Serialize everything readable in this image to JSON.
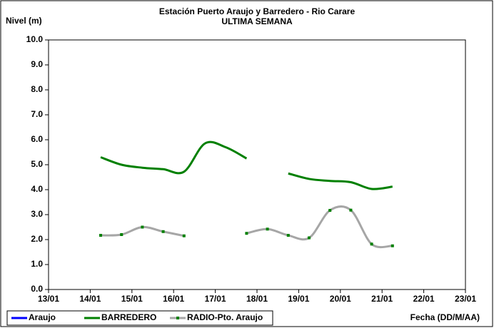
{
  "chart_data": {
    "type": "line",
    "title": "Estación Puerto Araujo y Barredero - Rio Carare",
    "subtitle": "ULTIMA SEMANA",
    "y_label": "Nivel (m)",
    "x_label": "Fecha (DD/M/AA)",
    "x": [
      14.25,
      14.75,
      15.25,
      15.75,
      16.25,
      16.75,
      17.25,
      17.75,
      18.25,
      18.75,
      19.25,
      19.75,
      20.25,
      20.75,
      21.25
    ],
    "series": [
      {
        "name": "Araujo",
        "color": "#0000ff",
        "values": [
          null,
          null,
          null,
          null,
          null,
          null,
          null,
          null,
          null,
          null,
          null,
          null,
          null,
          null,
          null
        ]
      },
      {
        "name": "BARREDERO",
        "color": "#008000",
        "values": [
          5.3,
          5.0,
          4.88,
          4.82,
          4.72,
          5.85,
          5.7,
          5.25,
          null,
          4.65,
          4.43,
          4.35,
          4.3,
          4.03,
          4.12
        ]
      },
      {
        "name": "RADIO-Pto. Araujo",
        "color": "#a6a6a6",
        "marker_color": "#008000",
        "values": [
          2.17,
          2.2,
          2.5,
          2.32,
          2.15,
          null,
          null,
          2.25,
          2.42,
          2.17,
          2.07,
          3.17,
          3.18,
          1.82,
          1.75
        ]
      }
    ],
    "xlim": [
      13,
      23
    ],
    "xticks": [
      {
        "value": 13,
        "label": "13/01"
      },
      {
        "value": 14,
        "label": "14/01"
      },
      {
        "value": 15,
        "label": "15/01"
      },
      {
        "value": 16,
        "label": "16/01"
      },
      {
        "value": 17,
        "label": "17/01"
      },
      {
        "value": 18,
        "label": "18/01"
      },
      {
        "value": 19,
        "label": "19/01"
      },
      {
        "value": 20,
        "label": "20/01"
      },
      {
        "value": 21,
        "label": "21/01"
      },
      {
        "value": 22,
        "label": "22/01"
      },
      {
        "value": 23,
        "label": "23/01"
      }
    ],
    "ylim": [
      0,
      10
    ],
    "yticks": [
      {
        "value": 0,
        "label": "0.0"
      },
      {
        "value": 1,
        "label": "1.0"
      },
      {
        "value": 2,
        "label": "2.0"
      },
      {
        "value": 3,
        "label": "3.0"
      },
      {
        "value": 4,
        "label": "4.0"
      },
      {
        "value": 5,
        "label": "5.0"
      },
      {
        "value": 6,
        "label": "6.0"
      },
      {
        "value": 7,
        "label": "7.0"
      },
      {
        "value": 8,
        "label": "8.0"
      },
      {
        "value": 9,
        "label": "9.0"
      },
      {
        "value": 10,
        "label": "10.0"
      }
    ],
    "grid": false,
    "legend": "bottom-left"
  }
}
